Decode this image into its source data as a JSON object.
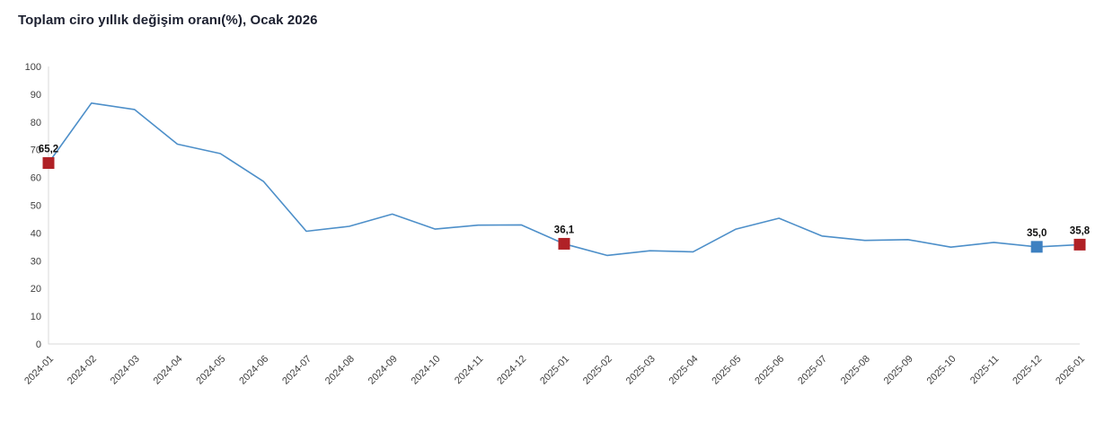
{
  "title": "Toplam ciro yıllık değişim oranı(%), Ocak 2026",
  "colors": {
    "line": "#4d8fc9",
    "marker_red": "#b02126",
    "marker_blue": "#3d80c1",
    "axis": "#d9d9d9",
    "tick_text": "#404040",
    "title_text": "#1c2030",
    "data_label_text": "#111111",
    "background": "#ffffff"
  },
  "chart_data": {
    "type": "line",
    "title": "Toplam ciro yıllık değişim oranı(%), Ocak 2026",
    "xlabel": "",
    "ylabel": "",
    "ylim": [
      0,
      100
    ],
    "yticks": [
      0,
      10,
      20,
      30,
      40,
      50,
      60,
      70,
      80,
      90,
      100
    ],
    "grid": false,
    "legend": "none",
    "x": [
      "2024-01",
      "2024-02",
      "2024-03",
      "2024-04",
      "2024-05",
      "2024-06",
      "2024-07",
      "2024-08",
      "2024-09",
      "2024-10",
      "2024-11",
      "2024-12",
      "2025-01",
      "2025-02",
      "2025-03",
      "2025-04",
      "2025-05",
      "2025-06",
      "2025-07",
      "2025-08",
      "2025-09",
      "2025-10",
      "2025-11",
      "2025-12",
      "2026-01"
    ],
    "values": [
      65.2,
      86.8,
      84.5,
      72.0,
      68.6,
      58.6,
      40.6,
      42.4,
      46.8,
      41.4,
      42.8,
      42.9,
      36.1,
      31.9,
      33.6,
      33.2,
      41.4,
      45.3,
      38.9,
      37.3,
      37.6,
      34.9,
      36.6,
      35.0,
      35.8
    ],
    "annotated_points": [
      {
        "x": "2024-01",
        "index": 0,
        "value": 65.2,
        "label": "65,2",
        "marker": "red"
      },
      {
        "x": "2025-01",
        "index": 12,
        "value": 36.1,
        "label": "36,1",
        "marker": "red"
      },
      {
        "x": "2025-12",
        "index": 23,
        "value": 35.0,
        "label": "35,0",
        "marker": "blue"
      },
      {
        "x": "2026-01",
        "index": 24,
        "value": 35.8,
        "label": "35,8",
        "marker": "red"
      }
    ]
  }
}
